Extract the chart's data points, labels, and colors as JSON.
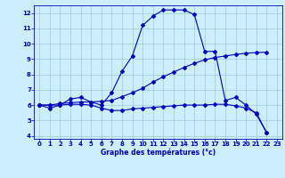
{
  "xlabel": "Graphe des températures (°c)",
  "background_color": "#cceeff",
  "grid_color": "#99cccc",
  "line_color": "#0000bb",
  "hours": [
    0,
    1,
    2,
    3,
    4,
    5,
    6,
    7,
    8,
    9,
    10,
    11,
    12,
    13,
    14,
    15,
    16,
    17,
    18,
    19,
    20,
    21,
    22,
    23
  ],
  "curve_main": [
    6.0,
    5.8,
    6.0,
    6.4,
    6.5,
    6.2,
    6.0,
    6.8,
    8.2,
    9.2,
    11.2,
    11.8,
    12.2,
    12.2,
    12.2,
    11.9,
    9.5,
    9.5,
    6.3,
    6.5,
    6.0,
    5.4,
    4.2,
    null
  ],
  "curve_trend": [
    6.0,
    6.0,
    6.1,
    6.15,
    6.2,
    6.2,
    6.25,
    6.3,
    6.55,
    6.8,
    7.1,
    7.5,
    7.85,
    8.15,
    8.45,
    8.72,
    8.95,
    9.1,
    9.2,
    9.3,
    9.38,
    9.42,
    9.45,
    null
  ],
  "curve_dew": [
    6.0,
    6.0,
    6.0,
    6.05,
    6.05,
    6.0,
    5.8,
    5.65,
    5.65,
    5.75,
    5.8,
    5.85,
    5.9,
    5.95,
    6.0,
    6.0,
    6.0,
    6.05,
    6.05,
    5.95,
    5.8,
    5.5,
    4.2,
    null
  ],
  "ylim_min": 3.8,
  "ylim_max": 12.5,
  "yticks": [
    4,
    5,
    6,
    7,
    8,
    9,
    10,
    11,
    12
  ],
  "xticks": [
    0,
    1,
    2,
    3,
    4,
    5,
    6,
    7,
    8,
    9,
    10,
    11,
    12,
    13,
    14,
    15,
    16,
    17,
    18,
    19,
    20,
    21,
    22,
    23
  ],
  "xlabel_fontsize": 5.5,
  "xlabel_fontweight": "bold",
  "tick_fontsize": 5.0,
  "tick_fontweight": "bold",
  "marker_size": 2.0,
  "line_width": 0.8
}
